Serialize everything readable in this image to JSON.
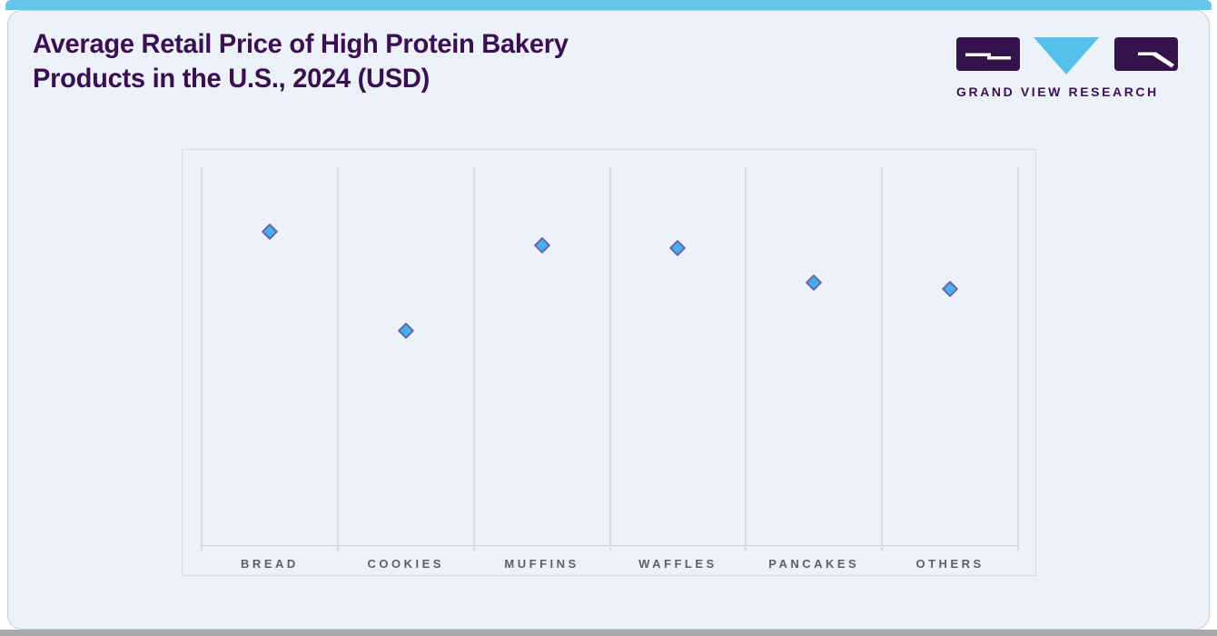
{
  "page": {
    "accent_bar_color": "#68c6ea",
    "card_bg": "#edf2f8",
    "bottom_bar_color": "#a9a9a9"
  },
  "header": {
    "title_line1": "Average Retail Price of High Protein Bakery",
    "title_line2": "Products in the U.S., 2024 (USD)",
    "title_color": "#3a1053"
  },
  "logo": {
    "text": "GRAND VIEW RESEARCH",
    "purple": "#34124c",
    "blue": "#55c0ec"
  },
  "chart_data": {
    "type": "scatter",
    "title": "Average Retail Price of High Protein Bakery Products in the U.S., 2024 (USD)",
    "categories": [
      "BREAD",
      "COOKIES",
      "MUFFINS",
      "WAFFLES",
      "PANCAKES",
      "OTHERS"
    ],
    "values": [
      0.829,
      0.567,
      0.793,
      0.786,
      0.695,
      0.678
    ],
    "value_note": "y-axis is unlabeled in the source; values are relative price levels as fraction of plot height (BREAD highest, COOKIES lowest)",
    "xlabel": "",
    "ylabel": "",
    "ylim": [
      0,
      1
    ],
    "grid": "vertical category separators only, no horizontal gridlines, no y ticks",
    "legend": "none",
    "marker": {
      "shape": "diamond",
      "fill": "#44b1e8",
      "stroke": "#6966ad"
    }
  }
}
